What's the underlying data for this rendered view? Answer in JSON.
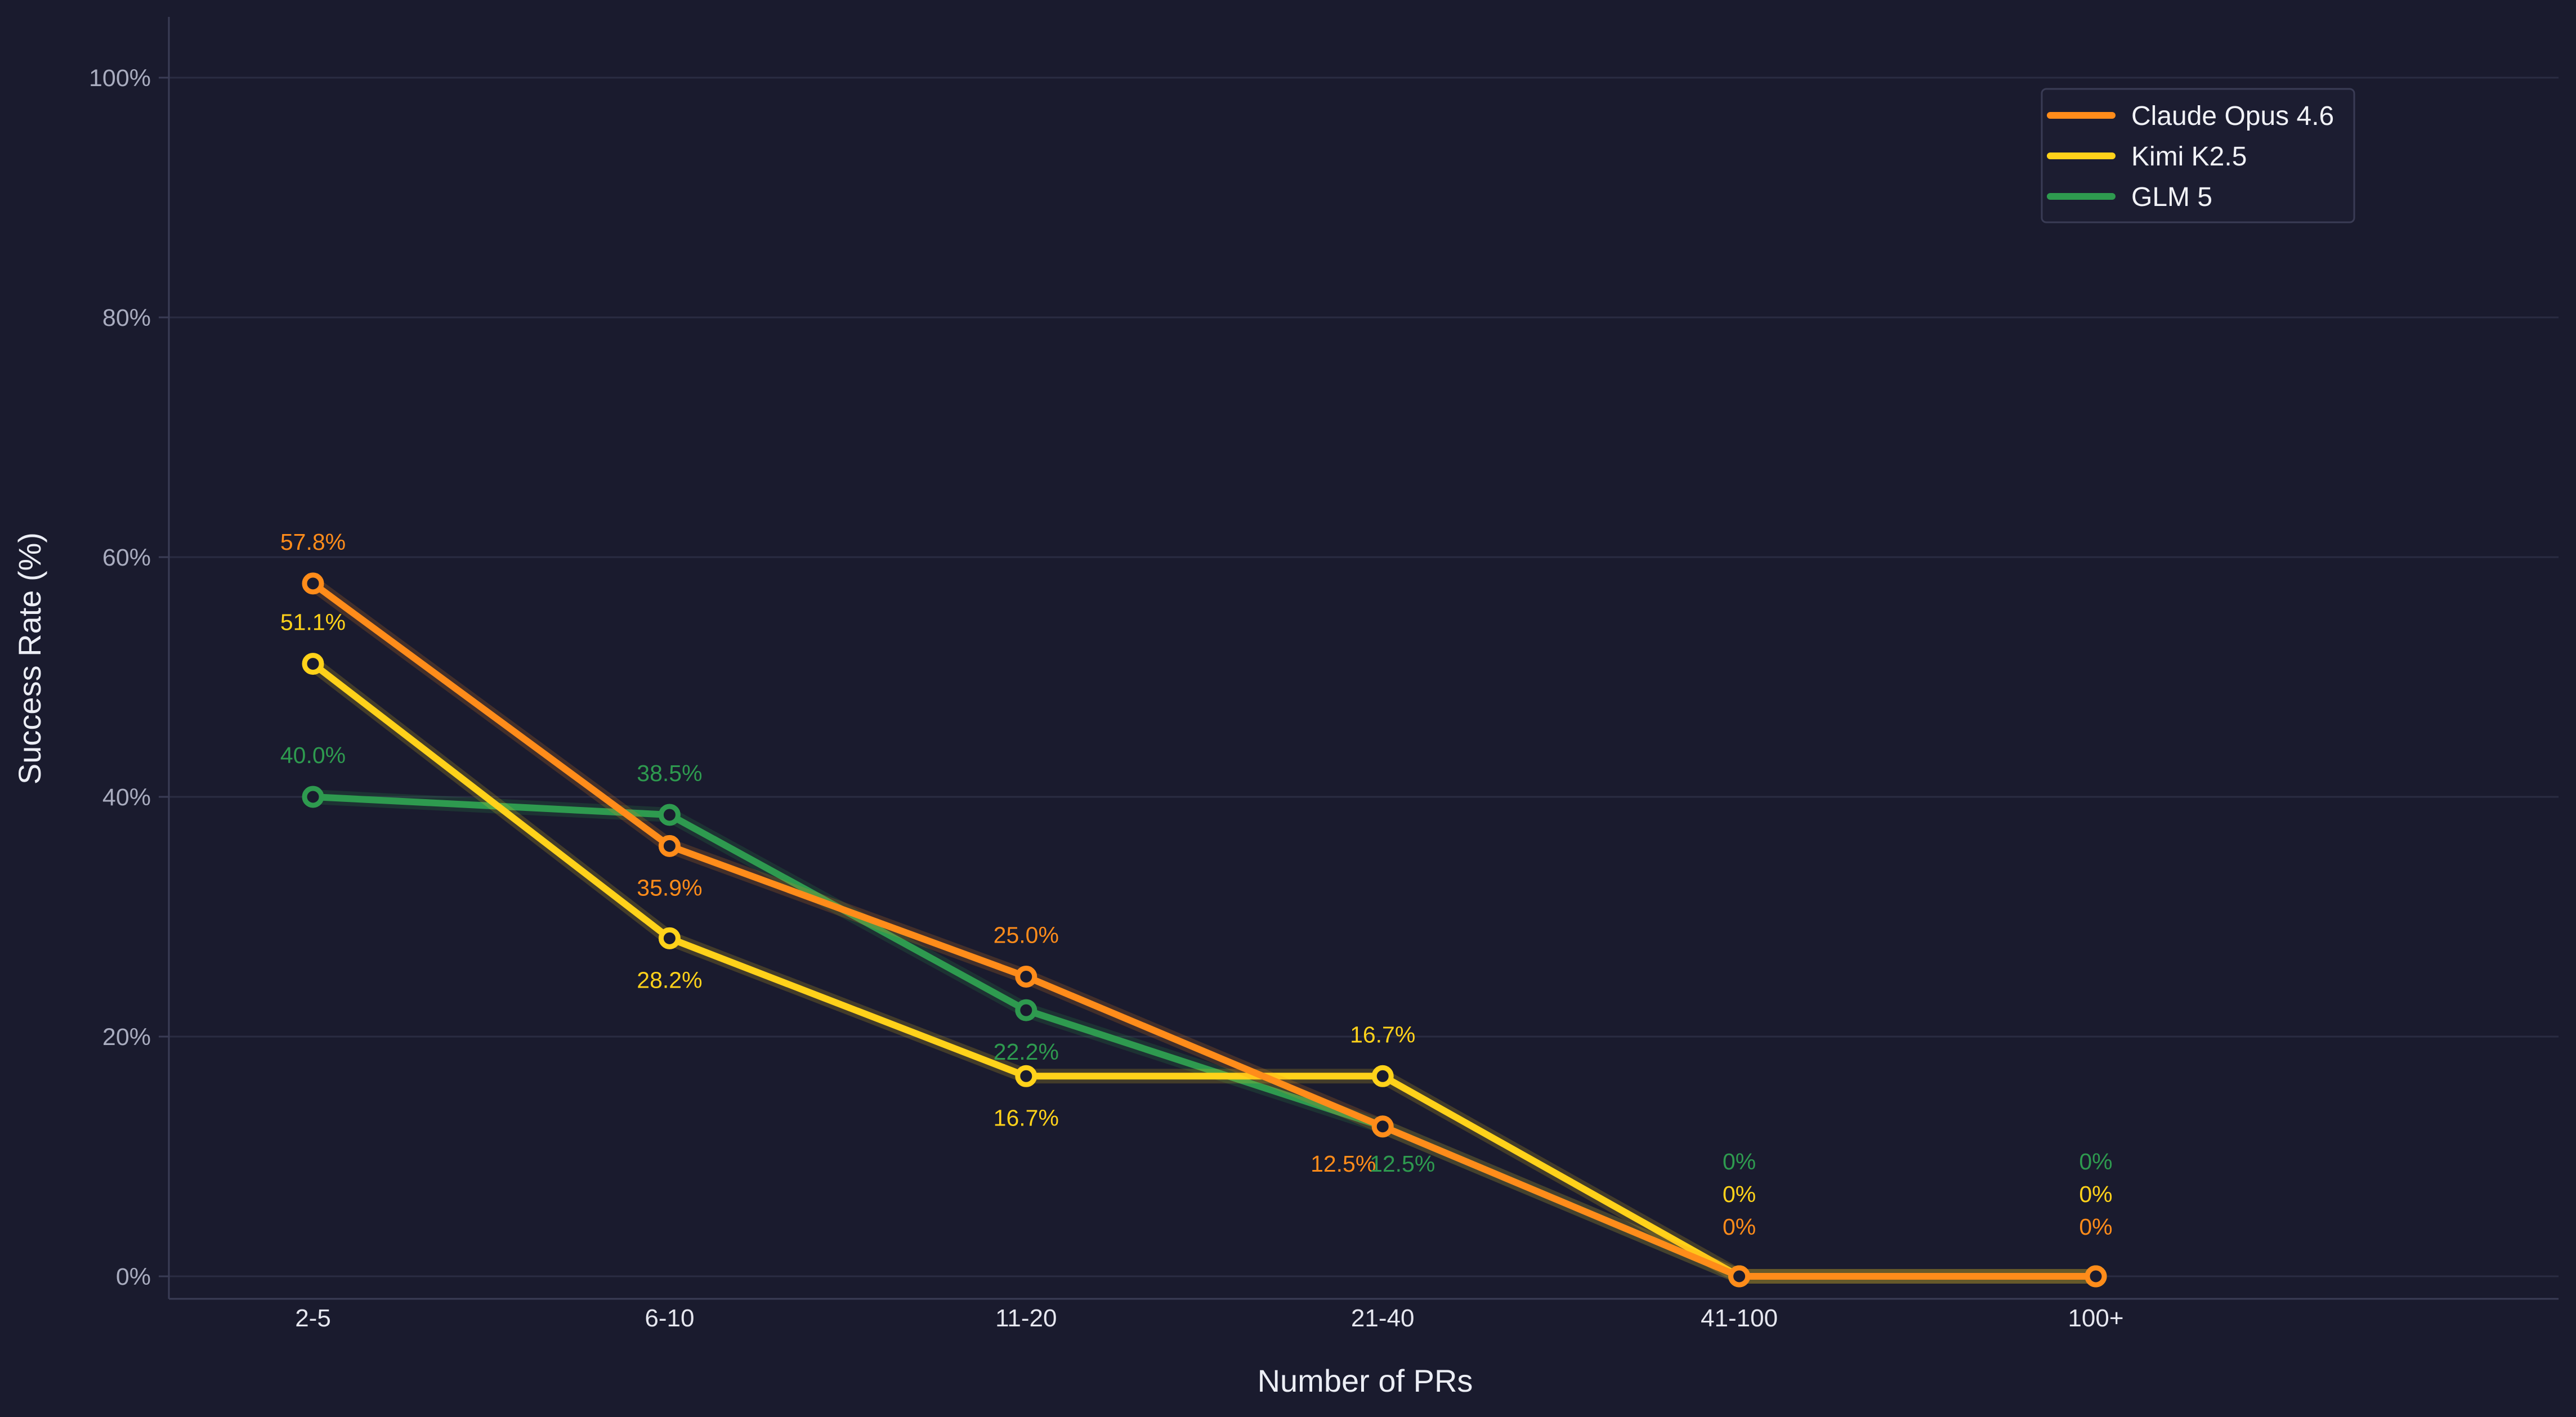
{
  "chart_data": {
    "type": "line",
    "title": "",
    "xlabel": "Number of PRs",
    "ylabel": "Success Rate (%)",
    "categories": [
      "2-5",
      "6-10",
      "11-20",
      "21-40",
      "41-100",
      "100+"
    ],
    "ylim": [
      0,
      105
    ],
    "yticks": [
      0,
      20,
      40,
      60,
      80,
      100
    ],
    "ytick_labels": [
      "0%",
      "20%",
      "40%",
      "60%",
      "80%",
      "100%"
    ],
    "grid": "horizontal",
    "legend_position": "top-right",
    "series": [
      {
        "name": "Claude Opus 4.6",
        "color": "#ff8c1a",
        "values": [
          57.8,
          35.9,
          25.0,
          12.5,
          0,
          0
        ],
        "labels": [
          "57.8%",
          "35.9%",
          "25.0%",
          "12.5%",
          "0%",
          "0%"
        ],
        "label_positions": [
          "above",
          "below",
          "above",
          "left-below",
          "stack-3",
          "stack-3"
        ]
      },
      {
        "name": "Kimi K2.5",
        "color": "#ffd21a",
        "values": [
          51.1,
          28.2,
          16.7,
          16.7,
          0,
          0
        ],
        "labels": [
          "51.1%",
          "28.2%",
          "16.7%",
          "16.7%",
          "0%",
          "0%"
        ],
        "label_positions": [
          "above",
          "below",
          "below",
          "above",
          "stack-2",
          "stack-2"
        ]
      },
      {
        "name": "GLM 5",
        "color": "#2e9a4f",
        "values": [
          40.0,
          38.5,
          22.2,
          12.5,
          0,
          0
        ],
        "labels": [
          "40.0%",
          "38.5%",
          "22.2%",
          "12.5%",
          "0%",
          "0%"
        ],
        "label_positions": [
          "above",
          "above",
          "below",
          "right-below",
          "stack-1",
          "stack-1"
        ]
      }
    ]
  },
  "colors": {
    "background": "#1a1b2e",
    "grid": "#2a2c42",
    "axis": "#3a3c55"
  }
}
